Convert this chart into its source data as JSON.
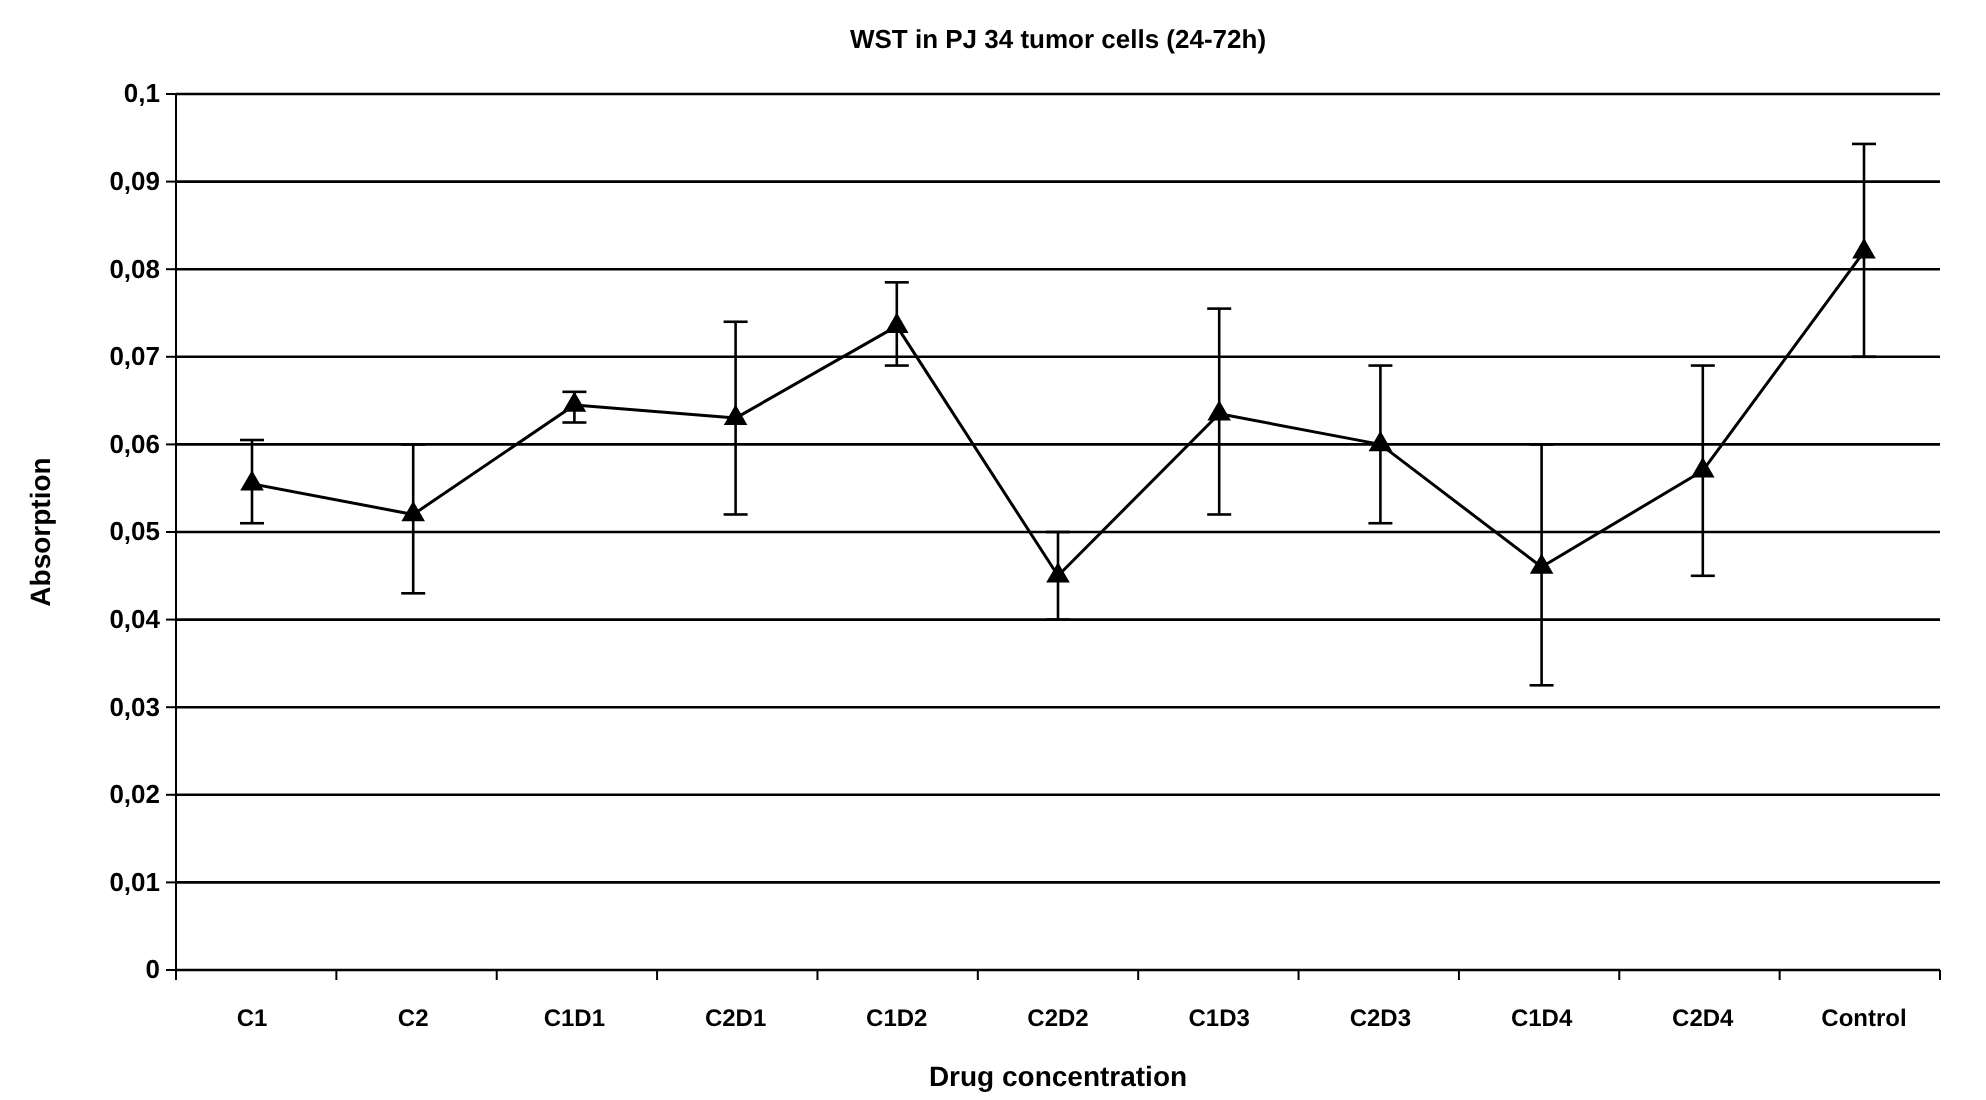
{
  "chart_data": {
    "type": "line",
    "title": "WST in PJ 34 tumor cells (24-72h)",
    "xlabel": "Drug concentration",
    "ylabel": "Absorption",
    "categories": [
      "C1",
      "C2",
      "C1D1",
      "C2D1",
      "C1D2",
      "C2D2",
      "C1D3",
      "C2D3",
      "C1D4",
      "C2D4",
      "Control"
    ],
    "series": [
      {
        "color": "#000000",
        "values": [
          0.0555,
          0.052,
          0.0645,
          0.063,
          0.0735,
          0.045,
          0.0635,
          0.06,
          0.046,
          0.057,
          0.082
        ],
        "errors": [
          [
            0.051,
            0.0605
          ],
          [
            0.043,
            0.06
          ],
          [
            0.0625,
            0.066
          ],
          [
            0.052,
            0.074
          ],
          [
            0.069,
            0.0785
          ],
          [
            0.04,
            0.05
          ],
          [
            0.052,
            0.0755
          ],
          [
            0.051,
            0.069
          ],
          [
            0.0325,
            0.06
          ],
          [
            0.045,
            0.069
          ],
          [
            0.07,
            0.0943
          ]
        ]
      }
    ],
    "ylim": [
      0,
      0.1
    ],
    "yticks": [
      0,
      {
        "value": 0.01,
        "label": "0,01"
      },
      {
        "value": 0.02,
        "label": "0,02"
      },
      {
        "value": 0.03,
        "label": "0,03"
      },
      {
        "value": 0.04,
        "label": "0,04"
      },
      {
        "value": 0.05,
        "label": "0,05"
      },
      {
        "value": 0.06,
        "label": "0,06"
      },
      {
        "value": 0.07,
        "label": "0,07"
      },
      {
        "value": 0.08,
        "label": "0,08"
      },
      {
        "value": 0.09,
        "label": "0,09"
      },
      {
        "value": 0.1,
        "label": "0,1"
      }
    ],
    "grid": "y",
    "marker": "triangle",
    "line_style": "solid"
  }
}
